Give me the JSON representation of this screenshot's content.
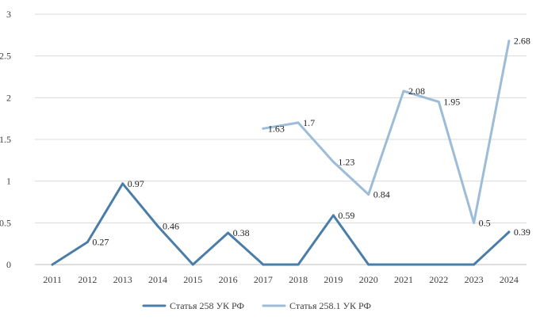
{
  "chart_data": {
    "type": "line",
    "title": "",
    "xlabel": "",
    "ylabel": "",
    "categories": [
      "2011",
      "2012",
      "2013",
      "2014",
      "2015",
      "2016",
      "2017",
      "2018",
      "2019",
      "2020",
      "2021",
      "2022",
      "2023",
      "2024"
    ],
    "ylim": [
      0,
      3
    ],
    "yticks": [
      "0",
      "0.5",
      "1",
      "1.5",
      "2",
      "2.5",
      "3"
    ],
    "grid": "horizontal",
    "legend_position": "bottom",
    "series": [
      {
        "name": "Статья 258 УК РФ",
        "color": "#4a7ea8",
        "values": [
          0,
          0.27,
          0.97,
          0.46,
          0,
          0.38,
          0,
          0,
          0.59,
          0,
          0,
          0,
          0,
          0.39
        ],
        "labels": [
          null,
          "0.27",
          "0.97",
          "0.46",
          null,
          "0.38",
          null,
          null,
          "0.59",
          null,
          null,
          null,
          null,
          "0.39"
        ]
      },
      {
        "name": "Статья 258.1 УК РФ",
        "color": "#9dbcd8",
        "values": [
          null,
          null,
          null,
          null,
          null,
          null,
          1.63,
          1.7,
          1.23,
          0.84,
          2.08,
          1.95,
          0.5,
          2.68
        ],
        "labels": [
          null,
          null,
          null,
          null,
          null,
          null,
          "1.63",
          "1.7",
          "1.23",
          "0.84",
          "2.08",
          "1.95",
          "0.5",
          "2.68"
        ]
      }
    ]
  }
}
